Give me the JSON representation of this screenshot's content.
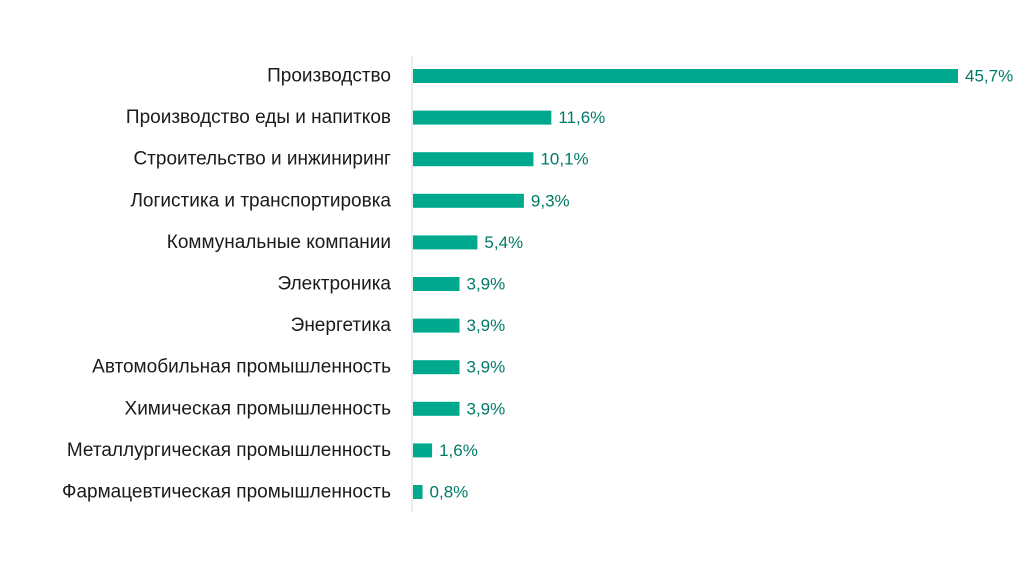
{
  "chart_data": {
    "type": "bar",
    "orientation": "horizontal",
    "categories": [
      "Производство",
      "Производство еды и напитков",
      "Строительство и инжиниринг",
      "Логистика и транспортировка",
      "Коммунальные компании",
      "Электроника",
      "Энергетика",
      "Автомобильная промышленность",
      "Химическая промышленность",
      "Металлургическая промышленность",
      "Фармацевтическая промышленность"
    ],
    "values": [
      45.7,
      11.6,
      10.1,
      9.3,
      5.4,
      3.9,
      3.9,
      3.9,
      3.9,
      1.6,
      0.8
    ],
    "value_labels": [
      "45,7%",
      "11,6%",
      "10,1%",
      "9,3%",
      "5,4%",
      "3,9%",
      "3,9%",
      "3,9%",
      "3,9%",
      "1,6%",
      "0,8%"
    ],
    "title": "",
    "xlabel": "",
    "ylabel": "",
    "xlim": [
      0,
      45.7
    ],
    "unit": "%",
    "grid": false,
    "legend": "none",
    "colors": {
      "bar": "#00a88e",
      "value_text": "#007a68",
      "axis_line": "#d9d9d9",
      "category_text": "#1a1a1a"
    }
  }
}
